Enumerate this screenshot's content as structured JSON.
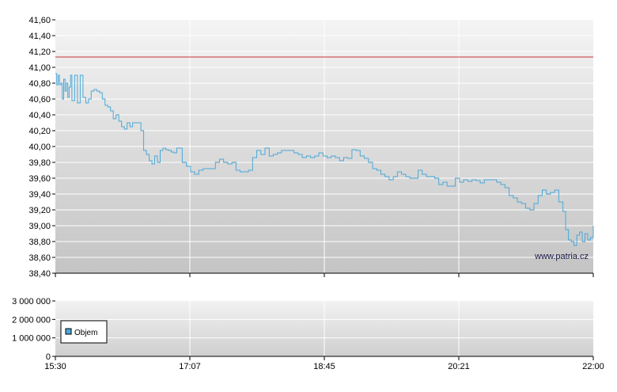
{
  "chart_data": [
    {
      "type": "line",
      "title": "",
      "xlabel": "",
      "ylabel": "",
      "ylim": [
        38.4,
        41.6
      ],
      "y_ticks": [
        "41,60",
        "41,40",
        "41,20",
        "41,00",
        "40,80",
        "40,60",
        "40,40",
        "40,20",
        "40,00",
        "39,80",
        "39,60",
        "39,40",
        "39,20",
        "39,00",
        "38,80",
        "38,60",
        "38,40"
      ],
      "x_ticks": [
        "15:30",
        "17:07",
        "18:45",
        "20:21",
        "22:00"
      ],
      "x_range_minutes": [
        930,
        1320
      ],
      "grid": true,
      "reference_line": {
        "value": 41.13,
        "color": "#cc3333"
      },
      "series_color": "#4aa8d8",
      "watermark": "www.patria.cz",
      "series": [
        {
          "values_time": [
            930,
            931,
            932,
            933,
            934,
            935,
            936,
            937,
            938,
            939,
            940,
            941,
            942,
            944,
            946,
            948,
            950,
            952,
            954,
            956,
            958,
            960,
            962,
            964,
            966,
            968,
            970,
            972,
            974,
            976,
            978,
            980,
            982,
            984,
            986,
            988,
            990,
            992,
            994,
            996,
            998,
            1000,
            1002,
            1004,
            1006,
            1008,
            1010,
            1012,
            1014,
            1016,
            1018,
            1020,
            1022,
            1025,
            1028,
            1031,
            1034,
            1037,
            1040,
            1043,
            1046,
            1049,
            1052,
            1055,
            1058,
            1061,
            1064,
            1067,
            1070,
            1073,
            1076,
            1079,
            1082,
            1085,
            1088,
            1091,
            1094,
            1097,
            1100,
            1103,
            1106,
            1109,
            1112,
            1115,
            1118,
            1121,
            1124,
            1127,
            1130,
            1133,
            1136,
            1139,
            1142,
            1145,
            1148,
            1151,
            1154,
            1157,
            1160,
            1163,
            1166,
            1169,
            1172,
            1175,
            1178,
            1181,
            1184,
            1187,
            1190,
            1193,
            1196,
            1199,
            1202,
            1205,
            1208,
            1211,
            1214,
            1217,
            1220,
            1223,
            1226,
            1229,
            1232,
            1235,
            1238,
            1241,
            1244,
            1247,
            1250,
            1253,
            1256,
            1259,
            1262,
            1265,
            1268,
            1271,
            1274,
            1277,
            1280,
            1283,
            1286,
            1289,
            1292,
            1295,
            1298,
            1300,
            1302,
            1304,
            1306,
            1308,
            1310,
            1312,
            1314,
            1316,
            1318,
            1320
          ],
          "values": [
            40.92,
            40.78,
            40.9,
            40.78,
            40.8,
            40.6,
            40.85,
            40.7,
            40.8,
            40.62,
            40.75,
            40.9,
            40.58,
            40.9,
            40.55,
            40.9,
            40.62,
            40.55,
            40.6,
            40.7,
            40.72,
            40.7,
            40.68,
            40.6,
            40.52,
            40.5,
            40.45,
            40.35,
            40.4,
            40.32,
            40.25,
            40.22,
            40.3,
            40.25,
            40.3,
            40.3,
            40.3,
            40.2,
            39.95,
            39.9,
            39.82,
            39.78,
            39.88,
            39.8,
            39.95,
            39.98,
            39.96,
            39.95,
            39.93,
            39.92,
            39.98,
            39.98,
            39.8,
            39.75,
            39.68,
            39.65,
            39.7,
            39.72,
            39.72,
            39.72,
            39.8,
            39.84,
            39.8,
            39.78,
            39.8,
            39.7,
            39.68,
            39.68,
            39.7,
            39.86,
            39.95,
            39.9,
            39.98,
            39.88,
            39.9,
            39.92,
            39.95,
            39.95,
            39.95,
            39.92,
            39.9,
            39.86,
            39.88,
            39.86,
            39.88,
            39.92,
            39.88,
            39.86,
            39.88,
            39.86,
            39.82,
            39.86,
            39.85,
            39.96,
            39.95,
            39.88,
            39.85,
            39.8,
            39.72,
            39.7,
            39.65,
            39.62,
            39.58,
            39.62,
            39.68,
            39.65,
            39.62,
            39.6,
            39.6,
            39.7,
            39.65,
            39.62,
            39.62,
            39.6,
            39.52,
            39.55,
            39.5,
            39.5,
            39.6,
            39.55,
            39.58,
            39.56,
            39.58,
            39.57,
            39.54,
            39.58,
            39.58,
            39.58,
            39.55,
            39.52,
            39.48,
            39.38,
            39.35,
            39.3,
            39.28,
            39.22,
            39.2,
            39.28,
            39.38,
            39.45,
            39.4,
            39.42,
            39.45,
            39.3,
            39.18,
            38.95,
            38.82,
            38.8,
            38.75,
            38.88,
            38.92,
            38.8,
            38.9,
            38.82,
            38.85,
            39.0
          ]
        }
      ]
    },
    {
      "type": "area",
      "title": "",
      "xlabel": "",
      "ylabel": "",
      "ylim": [
        0,
        3000000
      ],
      "y_ticks": [
        "3 000 000",
        "2 000 000",
        "1 000 000",
        "0"
      ],
      "x_ticks": [
        "15:30",
        "17:07",
        "18:45",
        "20:21",
        "22:00"
      ],
      "grid": true,
      "legend": {
        "placement": "bottom-left",
        "color": "#4aa8d8"
      },
      "series": [
        {
          "name": "Objem",
          "values": []
        }
      ]
    }
  ]
}
